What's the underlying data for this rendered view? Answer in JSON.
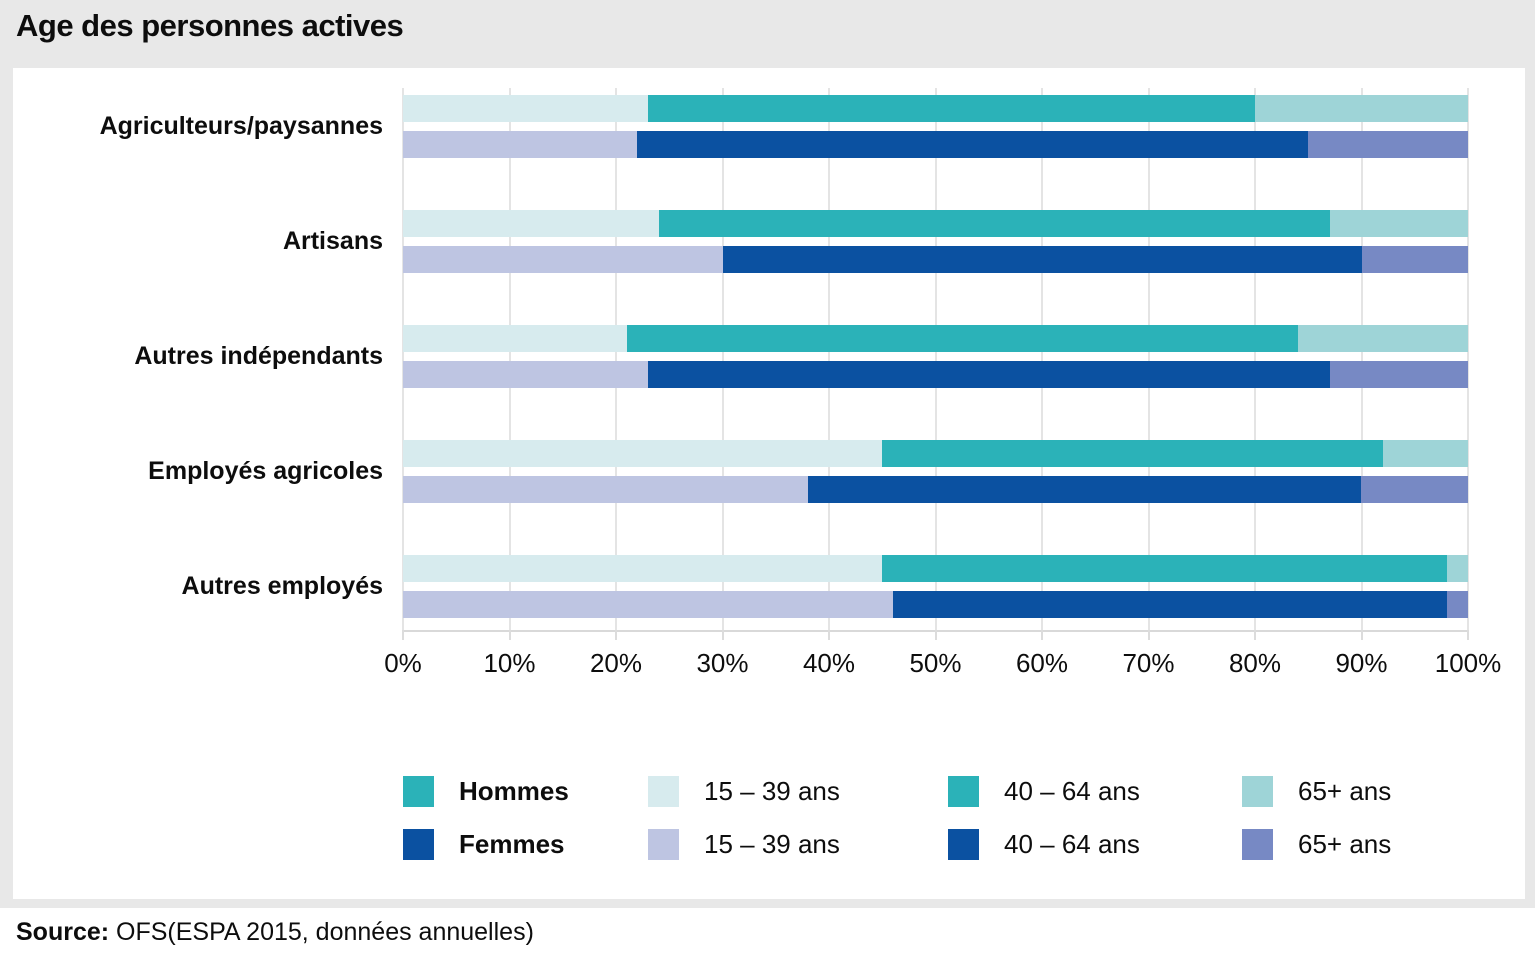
{
  "header": {
    "title": "Age des personnes actives"
  },
  "source": {
    "label": "Source:",
    "text": " OFS(ESPA 2015, données annuelles)"
  },
  "colors": {
    "background_gray": "#e8e8e8",
    "panel_white": "#ffffff",
    "gridline": "#e4e4e4",
    "axis_line": "#d9d9d9",
    "hommes_15_39": "#d7ebee",
    "hommes_40_64": "#2bb2b8",
    "hommes_65_plus": "#9ed4d7",
    "femmes_15_39": "#bec5e2",
    "femmes_40_64": "#0b51a1",
    "femmes_65_plus": "#7789c4"
  },
  "chart_data": {
    "type": "bar",
    "orientation": "horizontal",
    "stacked": true,
    "unit": "%",
    "title": "Age des personnes actives",
    "categories": [
      "Agriculteurs/paysannes",
      "Artisans",
      "Autres indépendants",
      "Employés agricoles",
      "Autres employés"
    ],
    "age_groups": [
      "15 – 39 ans",
      "40 – 64 ans",
      "65+ ans"
    ],
    "series": [
      {
        "name": "Hommes",
        "colors": [
          "#d7ebee",
          "#2bb2b8",
          "#9ed4d7"
        ],
        "values": [
          [
            23,
            57,
            20
          ],
          [
            24,
            63,
            13
          ],
          [
            21,
            63,
            16
          ],
          [
            45,
            47,
            8
          ],
          [
            45,
            53,
            2
          ]
        ]
      },
      {
        "name": "Femmes",
        "colors": [
          "#bec5e2",
          "#0b51a1",
          "#7789c4"
        ],
        "values": [
          [
            22,
            63,
            15
          ],
          [
            30,
            60,
            10
          ],
          [
            23,
            64,
            13
          ],
          [
            38,
            52,
            10
          ],
          [
            46,
            52,
            2
          ]
        ]
      }
    ],
    "x_ticks": [
      "0%",
      "10%",
      "20%",
      "30%",
      "40%",
      "50%",
      "60%",
      "70%",
      "80%",
      "90%",
      "100%"
    ],
    "xlim": [
      0,
      100
    ],
    "grid": true,
    "legend_position": "bottom"
  },
  "legend": {
    "rows": [
      {
        "series_label": "Hommes",
        "series_color": "#2bb2b8",
        "items": [
          {
            "label": "15 – 39 ans",
            "color": "#d7ebee"
          },
          {
            "label": "40 – 64 ans",
            "color": "#2bb2b8"
          },
          {
            "label": "65+ ans",
            "color": "#9ed4d7"
          }
        ]
      },
      {
        "series_label": "Femmes",
        "series_color": "#0b51a1",
        "items": [
          {
            "label": "15 – 39 ans",
            "color": "#bec5e2"
          },
          {
            "label": "40 – 64 ans",
            "color": "#0b51a1"
          },
          {
            "label": "65+ ans",
            "color": "#7789c4"
          }
        ]
      }
    ]
  }
}
